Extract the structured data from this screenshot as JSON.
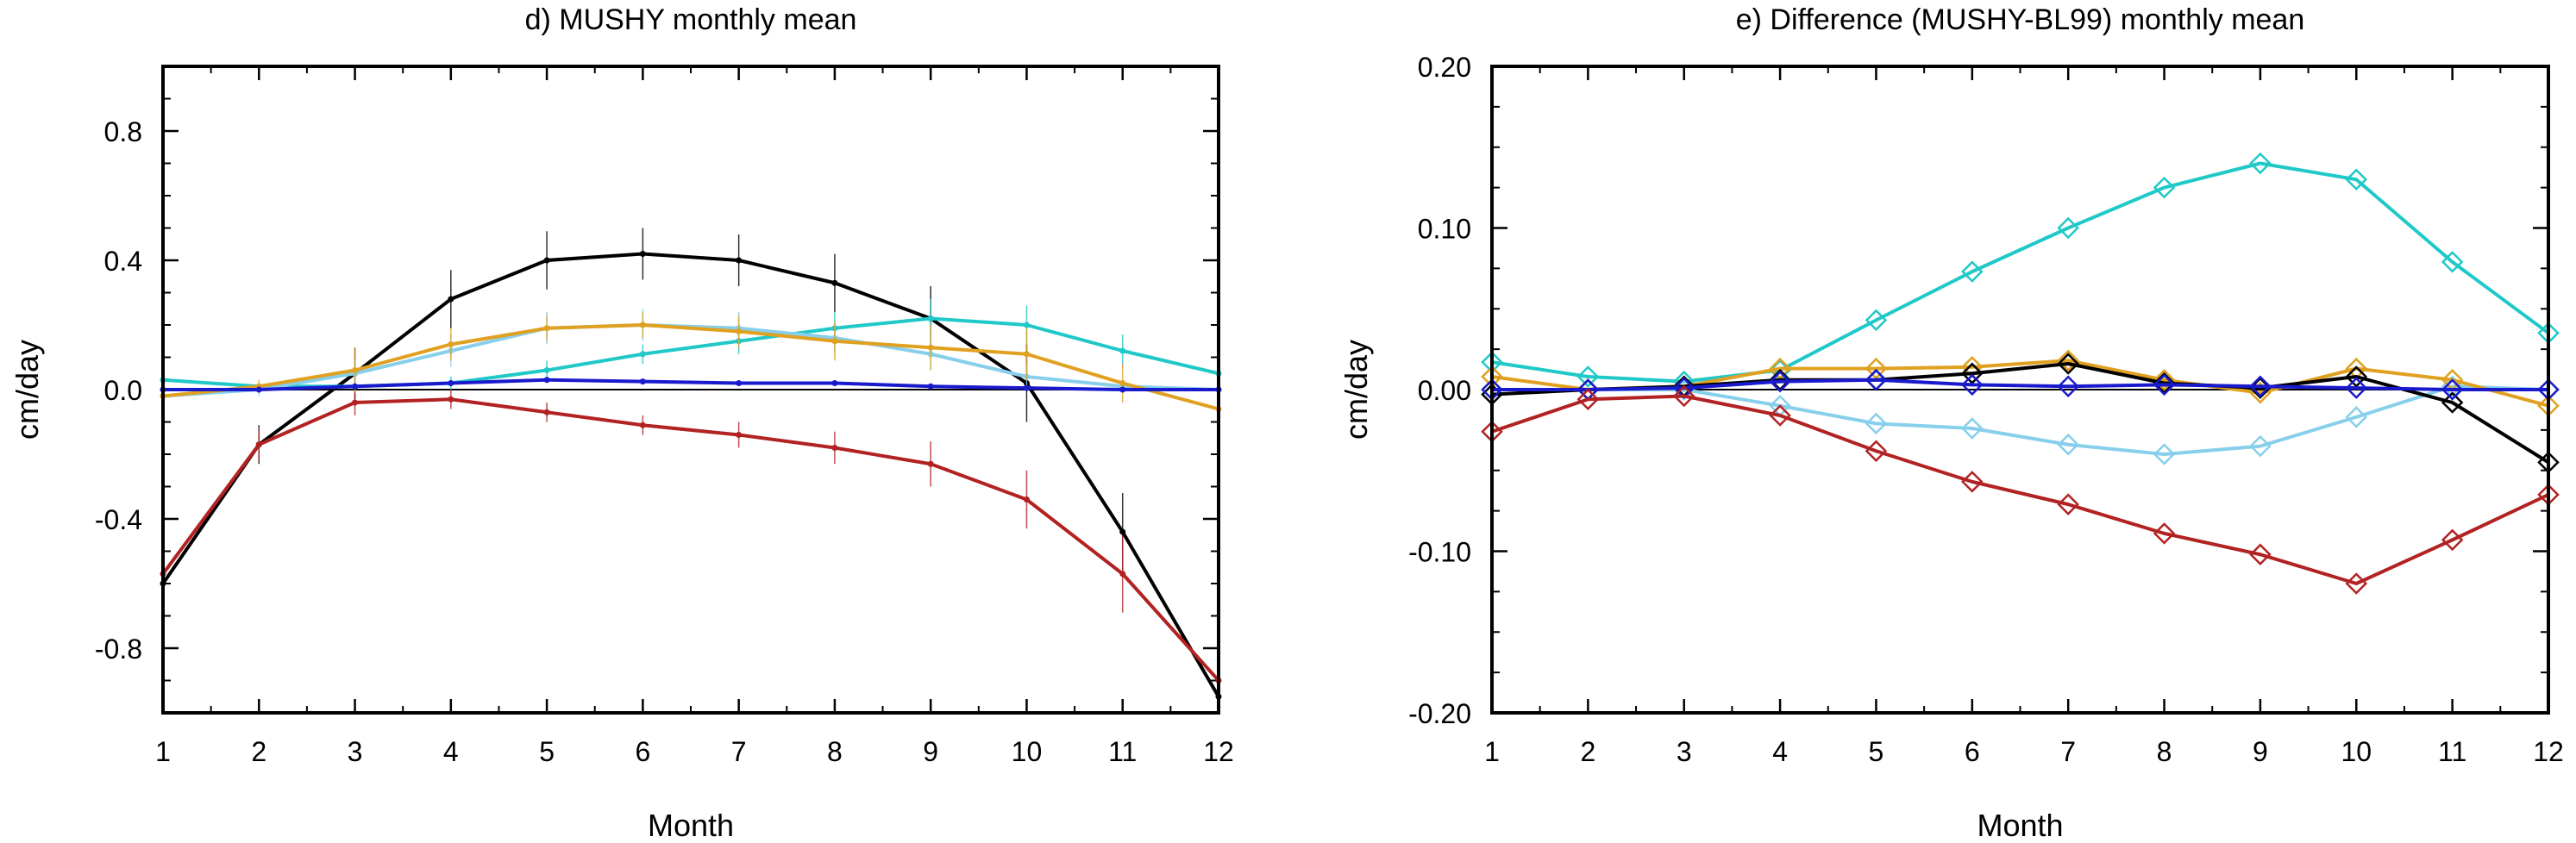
{
  "chart_data": [
    {
      "type": "line",
      "title": "d) MUSHY monthly mean",
      "xlabel": "Month",
      "ylabel": "cm/day",
      "xlim": [
        1,
        12
      ],
      "ylim": [
        -1.0,
        1.0
      ],
      "x": [
        1,
        2,
        3,
        4,
        5,
        6,
        7,
        8,
        9,
        10,
        11,
        12
      ],
      "xticklabels": [
        "1",
        "2",
        "3",
        "4",
        "5",
        "6",
        "7",
        "8",
        "9",
        "10",
        "11",
        "12"
      ],
      "yticks": [
        -0.8,
        -0.4,
        0.0,
        0.4,
        0.8
      ],
      "yticklabels": [
        "-0.8",
        "-0.4",
        "0.0",
        "0.4",
        "0.8"
      ],
      "zero_line": true,
      "markers": "dot",
      "series": [
        {
          "color": "#000000",
          "values": [
            -0.6,
            -0.17,
            0.05,
            0.28,
            0.4,
            0.42,
            0.4,
            0.33,
            0.22,
            0.02,
            -0.44,
            -0.95
          ],
          "err": [
            0.04,
            0.06,
            0.08,
            0.09,
            0.09,
            0.08,
            0.08,
            0.09,
            0.1,
            0.12,
            0.12,
            0.05
          ]
        },
        {
          "color": "#b22222",
          "values": [
            -0.57,
            -0.17,
            -0.04,
            -0.03,
            -0.07,
            -0.11,
            -0.14,
            -0.18,
            -0.23,
            -0.34,
            -0.57,
            -0.9
          ],
          "err": [
            0.03,
            0.05,
            0.04,
            0.03,
            0.03,
            0.03,
            0.04,
            0.05,
            0.07,
            0.09,
            0.12,
            0.05
          ]
        },
        {
          "color": "#20c8c8",
          "values": [
            0.03,
            0.01,
            0.01,
            0.02,
            0.06,
            0.11,
            0.15,
            0.19,
            0.22,
            0.2,
            0.12,
            0.05
          ],
          "err": [
            0.01,
            0.01,
            0.01,
            0.02,
            0.03,
            0.03,
            0.04,
            0.05,
            0.06,
            0.06,
            0.05,
            0.02
          ]
        },
        {
          "color": "#87cfeb",
          "values": [
            -0.02,
            0.0,
            0.05,
            0.12,
            0.19,
            0.2,
            0.19,
            0.16,
            0.11,
            0.04,
            0.01,
            0.0
          ],
          "err": [
            0.01,
            0.02,
            0.04,
            0.05,
            0.05,
            0.05,
            0.05,
            0.05,
            0.05,
            0.04,
            0.02,
            0.01
          ]
        },
        {
          "color": "#e0a020",
          "values": [
            -0.02,
            0.01,
            0.06,
            0.14,
            0.19,
            0.2,
            0.18,
            0.15,
            0.13,
            0.11,
            0.02,
            -0.06
          ],
          "err": [
            0.01,
            0.02,
            0.07,
            0.05,
            0.04,
            0.04,
            0.05,
            0.06,
            0.07,
            0.08,
            0.06,
            0.02
          ]
        },
        {
          "color": "#1a1acd",
          "values": [
            0.0,
            0.0,
            0.01,
            0.02,
            0.03,
            0.025,
            0.02,
            0.02,
            0.01,
            0.005,
            0.0,
            0.0
          ],
          "err": [
            0,
            0,
            0,
            0,
            0,
            0,
            0,
            0,
            0,
            0,
            0,
            0
          ]
        }
      ]
    },
    {
      "type": "line",
      "title": "e) Difference (MUSHY-BL99) monthly mean",
      "xlabel": "Month",
      "ylabel": "cm/day",
      "xlim": [
        1,
        12
      ],
      "ylim": [
        -0.2,
        0.2
      ],
      "x": [
        1,
        2,
        3,
        4,
        5,
        6,
        7,
        8,
        9,
        10,
        11,
        12
      ],
      "xticklabels": [
        "1",
        "2",
        "3",
        "4",
        "5",
        "6",
        "7",
        "8",
        "9",
        "10",
        "11",
        "12"
      ],
      "yticks": [
        -0.2,
        -0.1,
        0.0,
        0.1,
        0.2
      ],
      "yticklabels": [
        "-0.20",
        "-0.10",
        "0.00",
        "0.10",
        "0.20"
      ],
      "zero_line": true,
      "markers": "diamond",
      "series": [
        {
          "color": "#20c8c8",
          "values": [
            0.017,
            0.008,
            0.005,
            0.012,
            0.043,
            0.073,
            0.1,
            0.125,
            0.14,
            0.13,
            0.079,
            0.035
          ]
        },
        {
          "color": "#87cfeb",
          "values": [
            0.0,
            0.0,
            0.0,
            -0.01,
            -0.021,
            -0.024,
            -0.034,
            -0.04,
            -0.035,
            -0.017,
            0.002,
            0.0
          ]
        },
        {
          "color": "#e0a020",
          "values": [
            0.008,
            0.0,
            0.002,
            0.013,
            0.013,
            0.014,
            0.018,
            0.006,
            -0.002,
            0.013,
            0.006,
            -0.01
          ]
        },
        {
          "color": "#000000",
          "values": [
            -0.003,
            0.0,
            0.002,
            0.006,
            0.006,
            0.01,
            0.016,
            0.004,
            0.001,
            0.008,
            -0.008,
            -0.045
          ]
        },
        {
          "color": "#1a1acd",
          "values": [
            0.0,
            0.0,
            0.001,
            0.005,
            0.006,
            0.003,
            0.002,
            0.003,
            0.002,
            0.001,
            0.0,
            0.0
          ]
        },
        {
          "color": "#b22222",
          "values": [
            -0.026,
            -0.006,
            -0.004,
            -0.016,
            -0.038,
            -0.057,
            -0.071,
            -0.089,
            -0.102,
            -0.12,
            -0.093,
            -0.065
          ]
        }
      ]
    }
  ]
}
